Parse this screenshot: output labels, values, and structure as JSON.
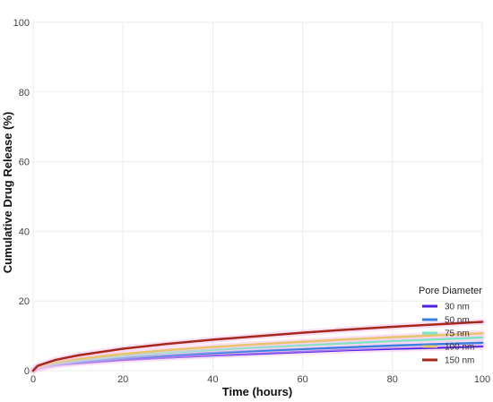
{
  "chart_data": {
    "type": "line",
    "xlabel": "Time (hours)",
    "ylabel": "Cumulative Drug Release (%)",
    "xlim": [
      0,
      100
    ],
    "ylim": [
      0,
      100
    ],
    "xticks": [
      "0",
      "20",
      "40",
      "60",
      "80",
      "100"
    ],
    "yticks": [
      "0",
      "20",
      "40",
      "60",
      "80",
      "100"
    ],
    "grid": true,
    "legend": {
      "title": "Pore Diameter",
      "position": "bottom-right"
    },
    "x": [
      0,
      1,
      5,
      10,
      20,
      30,
      40,
      50,
      60,
      70,
      80,
      90,
      100
    ],
    "series": [
      {
        "name": "30 nm",
        "color": "#4b1fe6",
        "values": [
          0,
          0.7,
          1.6,
          2.2,
          3.1,
          3.8,
          4.4,
          4.9,
          5.4,
          5.9,
          6.3,
          6.6,
          7.0
        ]
      },
      {
        "name": "50 nm",
        "color": "#3a7fe0",
        "values": [
          0,
          0.8,
          1.8,
          2.5,
          3.6,
          4.4,
          5.1,
          5.7,
          6.2,
          6.7,
          7.2,
          7.6,
          8.0
        ]
      },
      {
        "name": "75 nm",
        "color": "#7be6c0",
        "values": [
          0,
          0.9,
          2.1,
          3.0,
          4.2,
          5.2,
          6.0,
          6.7,
          7.3,
          7.9,
          8.5,
          9.0,
          9.5
        ]
      },
      {
        "name": "100 nm",
        "color": "#e8c46a",
        "values": [
          0,
          1.1,
          2.4,
          3.4,
          4.8,
          5.9,
          6.8,
          7.6,
          8.3,
          9.0,
          9.6,
          10.2,
          10.7
        ]
      },
      {
        "name": "150 nm",
        "color": "#a8281c",
        "values": [
          0,
          1.4,
          3.1,
          4.4,
          6.3,
          7.7,
          8.9,
          9.9,
          10.9,
          11.8,
          12.6,
          13.3,
          14.0
        ]
      }
    ]
  }
}
